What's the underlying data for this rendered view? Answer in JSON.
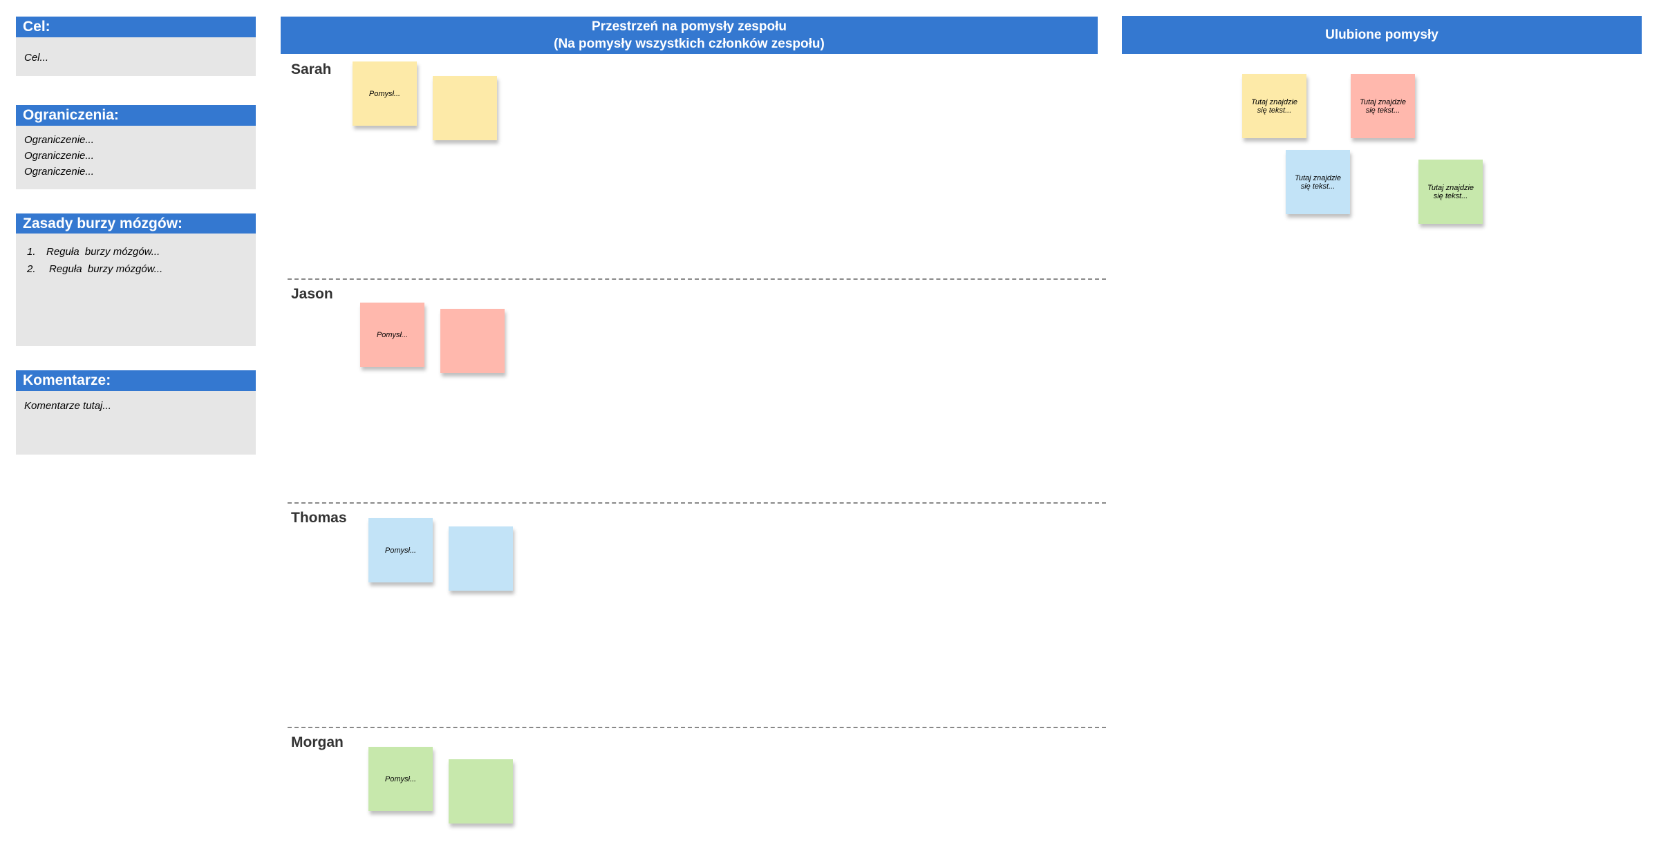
{
  "sidebar": [
    {
      "title": "Cel:",
      "lines": [
        "Cel..."
      ]
    },
    {
      "title": "Ograniczenia:",
      "lines": [
        "Ograniczenie...",
        "Ograniczenie...",
        "Ograniczenie..."
      ]
    },
    {
      "title": "Zasady burzy mózgów:",
      "items": [
        {
          "number": "1.",
          "text": "Reguła  burzy mózgów..."
        },
        {
          "number": "2.",
          "text": "Reguła  burzy mózgów..."
        }
      ]
    },
    {
      "title": "Komentarze:",
      "lines": [
        "Komentarze tutaj..."
      ]
    }
  ],
  "team_space": {
    "title": [
      "Przestrzeń na pomysły zespołu",
      "(Na pomysły wszystkich członków zespołu)"
    ],
    "lanes": [
      {
        "name": "Sarah",
        "note": "Pomysł..."
      },
      {
        "name": "Jason",
        "note": "Pomysł..."
      },
      {
        "name": "Thomas",
        "note": "Pomysł..."
      },
      {
        "name": "Morgan",
        "note": "Pomysł..."
      }
    ]
  },
  "favorites": {
    "title": "Ulubione pomysły",
    "notes": [
      "Tutaj znajdzie się tekst...",
      "Tutaj znajdzie się tekst...",
      "Tutaj znajdzie się tekst...",
      "Tutaj znajdzie się tekst..."
    ]
  }
}
